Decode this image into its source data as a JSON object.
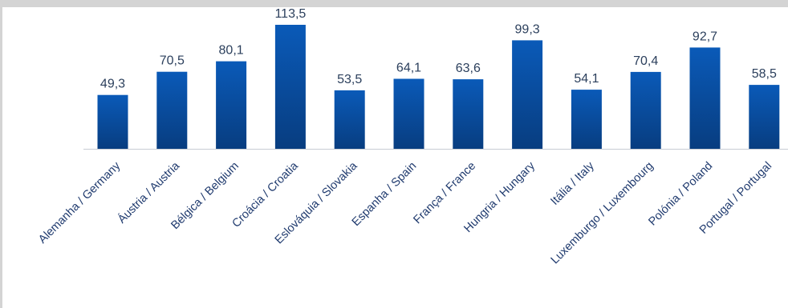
{
  "chart_data": {
    "type": "bar",
    "title": "",
    "xlabel": "",
    "ylabel": "",
    "ylim": [
      0,
      113.5
    ],
    "grid": false,
    "legend": "none",
    "categories": [
      "Alemanha / Germany",
      "Áustria / Austria",
      "Bélgica / Belgium",
      "Croácia / Croatia",
      "Eslováquia / Slovakia",
      "Espanha / Spain",
      "França / France",
      "Hungria / Hungary",
      "Itália / Italy",
      "Luxemburgo / Luxembourg",
      "Polónia / Poland",
      "Portugal / Portugal"
    ],
    "values": [
      49.3,
      70.5,
      80.1,
      113.5,
      53.5,
      64.1,
      63.6,
      99.3,
      54.1,
      70.4,
      92.7,
      58.5
    ],
    "value_labels": [
      "49,3",
      "70,5",
      "80,1",
      "113,5",
      "53,5",
      "64,1",
      "63,6",
      "99,3",
      "54,1",
      "70,4",
      "92,7",
      "58,5"
    ],
    "colors": {
      "bar_top": "#0a5ab8",
      "bar_bottom": "#083d80",
      "baseline": "#c8ccd4",
      "value_text": "#2b3f5c",
      "tick_text": "#1f3a6e",
      "frame": "#d4d4d4"
    }
  }
}
